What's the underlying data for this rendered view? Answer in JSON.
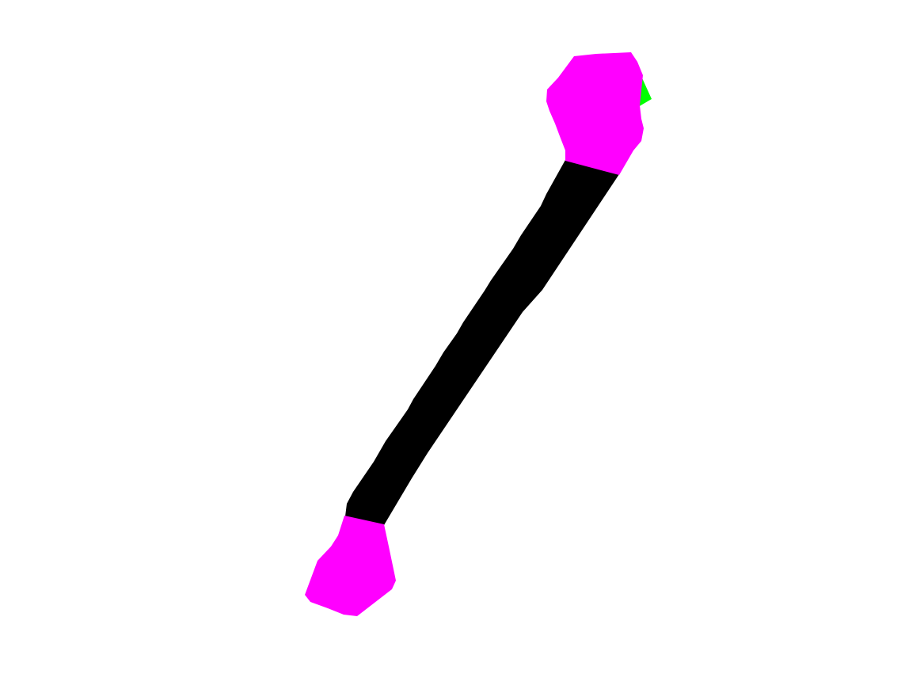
{
  "colors": {
    "background": "#ffffff",
    "shaft": "#000000",
    "joint": "#ff00ff",
    "accent": "#00ff00"
  },
  "shapes": {
    "shaft": "bone-shaft",
    "upper_joint": "upper-joint",
    "lower_joint": "lower-joint",
    "accent": "green-accent"
  }
}
